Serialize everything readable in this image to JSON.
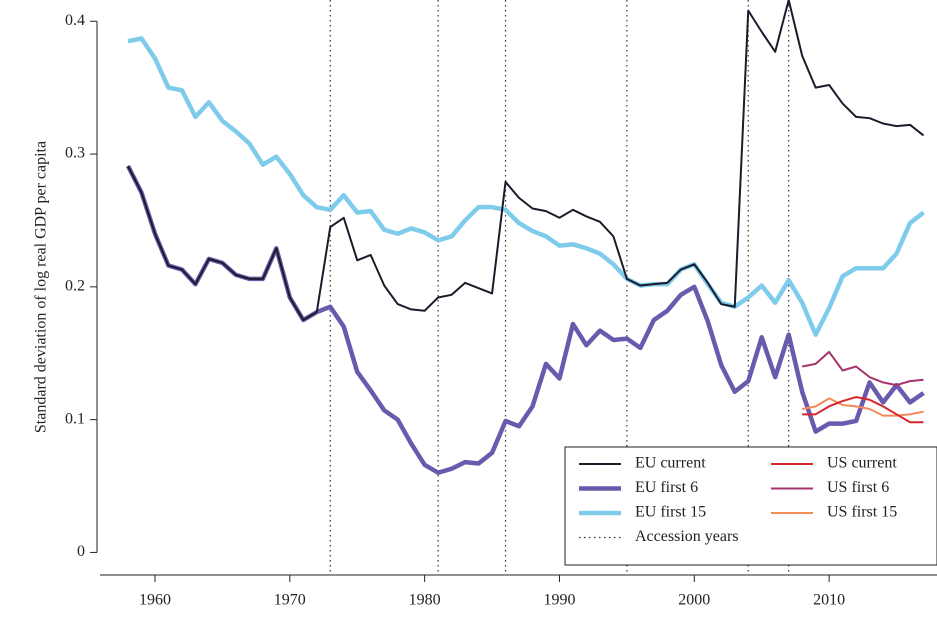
{
  "chart_data": {
    "type": "line",
    "ylabel": "Standard deviation of log real GDP per capita",
    "x": [
      1958,
      1959,
      1960,
      1961,
      1962,
      1963,
      1964,
      1965,
      1966,
      1967,
      1968,
      1969,
      1970,
      1971,
      1972,
      1973,
      1974,
      1975,
      1976,
      1977,
      1978,
      1979,
      1980,
      1981,
      1982,
      1983,
      1984,
      1985,
      1986,
      1987,
      1988,
      1989,
      1990,
      1991,
      1992,
      1993,
      1994,
      1995,
      1996,
      1997,
      1998,
      1999,
      2000,
      2001,
      2002,
      2003,
      2004,
      2005,
      2006,
      2007,
      2008,
      2009,
      2010,
      2011,
      2012,
      2013,
      2014,
      2015,
      2016,
      2017
    ],
    "series": [
      {
        "name": "EU current",
        "color": "#1b1b2b",
        "linewidth": 2,
        "values": [
          0.291,
          0.271,
          0.24,
          0.216,
          0.213,
          0.202,
          0.221,
          0.218,
          0.209,
          0.206,
          0.206,
          0.229,
          0.192,
          0.175,
          0.181,
          0.245,
          0.252,
          0.22,
          0.224,
          0.201,
          0.187,
          0.183,
          0.182,
          0.192,
          0.194,
          0.203,
          0.199,
          0.195,
          0.279,
          0.267,
          0.259,
          0.257,
          0.252,
          0.258,
          0.253,
          0.249,
          0.238,
          0.206,
          0.201,
          0.202,
          0.203,
          0.213,
          0.217,
          0.203,
          0.187,
          0.185,
          0.408,
          0.392,
          0.377,
          0.416,
          0.374,
          0.35,
          0.352,
          0.338,
          0.328,
          0.327,
          0.323,
          0.321,
          0.322,
          0.314
        ]
      },
      {
        "name": "EU first 6",
        "color": "#6a5aad",
        "linewidth": 4.5,
        "values": [
          0.291,
          0.271,
          0.24,
          0.216,
          0.213,
          0.202,
          0.221,
          0.218,
          0.209,
          0.206,
          0.206,
          0.229,
          0.192,
          0.175,
          0.181,
          0.185,
          0.17,
          0.136,
          0.122,
          0.107,
          0.1,
          0.082,
          0.066,
          0.06,
          0.063,
          0.068,
          0.067,
          0.075,
          0.099,
          0.095,
          0.11,
          0.142,
          0.131,
          0.172,
          0.156,
          0.167,
          0.16,
          0.161,
          0.154,
          0.175,
          0.182,
          0.194,
          0.2,
          0.174,
          0.141,
          0.121,
          0.129,
          0.162,
          0.132,
          0.164,
          0.121,
          0.091,
          0.097,
          0.097,
          0.099,
          0.128,
          0.113,
          0.126,
          0.113,
          0.12
        ]
      },
      {
        "name": "EU first 15",
        "color": "#7ecbec",
        "linewidth": 4.5,
        "values": [
          0.385,
          0.387,
          0.372,
          0.35,
          0.348,
          0.328,
          0.339,
          0.325,
          0.317,
          0.308,
          0.292,
          0.298,
          0.285,
          0.269,
          0.26,
          0.258,
          0.269,
          0.256,
          0.257,
          0.243,
          0.24,
          0.244,
          0.241,
          0.235,
          0.238,
          0.25,
          0.26,
          0.26,
          0.258,
          0.248,
          0.242,
          0.238,
          0.231,
          0.232,
          0.229,
          0.225,
          0.217,
          0.206,
          0.201,
          0.202,
          0.202,
          0.213,
          0.217,
          0.202,
          0.188,
          0.185,
          0.192,
          0.201,
          0.188,
          0.205,
          0.188,
          0.164,
          0.184,
          0.208,
          0.214,
          0.214,
          0.214,
          0.225,
          0.248,
          0.256
        ]
      },
      {
        "name": "US current",
        "color": "#d7262a",
        "linewidth": 2,
        "values": [
          null,
          null,
          null,
          null,
          null,
          null,
          null,
          null,
          null,
          null,
          null,
          null,
          null,
          null,
          null,
          null,
          null,
          null,
          null,
          null,
          null,
          null,
          null,
          null,
          null,
          null,
          null,
          null,
          null,
          null,
          null,
          null,
          null,
          null,
          null,
          null,
          null,
          null,
          null,
          null,
          null,
          null,
          null,
          null,
          null,
          null,
          null,
          null,
          null,
          null,
          0.104,
          0.104,
          0.11,
          0.114,
          0.117,
          0.115,
          0.11,
          0.104,
          0.098,
          0.098
        ]
      },
      {
        "name": "US first 6",
        "color": "#a6336a",
        "linewidth": 2,
        "values": [
          null,
          null,
          null,
          null,
          null,
          null,
          null,
          null,
          null,
          null,
          null,
          null,
          null,
          null,
          null,
          null,
          null,
          null,
          null,
          null,
          null,
          null,
          null,
          null,
          null,
          null,
          null,
          null,
          null,
          null,
          null,
          null,
          null,
          null,
          null,
          null,
          null,
          null,
          null,
          null,
          null,
          null,
          null,
          null,
          null,
          null,
          null,
          null,
          null,
          null,
          0.14,
          0.142,
          0.151,
          0.137,
          0.14,
          0.132,
          0.128,
          0.126,
          0.129,
          0.13
        ]
      },
      {
        "name": "US first 15",
        "color": "#f28a5a",
        "linewidth": 2,
        "values": [
          null,
          null,
          null,
          null,
          null,
          null,
          null,
          null,
          null,
          null,
          null,
          null,
          null,
          null,
          null,
          null,
          null,
          null,
          null,
          null,
          null,
          null,
          null,
          null,
          null,
          null,
          null,
          null,
          null,
          null,
          null,
          null,
          null,
          null,
          null,
          null,
          null,
          null,
          null,
          null,
          null,
          null,
          null,
          null,
          null,
          null,
          null,
          null,
          null,
          null,
          0.108,
          0.11,
          0.116,
          0.111,
          0.11,
          0.108,
          0.103,
          0.103,
          0.104,
          0.106
        ]
      }
    ],
    "accession_years": {
      "name": "Accession years",
      "values": [
        1973,
        1981,
        1986,
        1995,
        2004,
        2007
      ]
    },
    "xlim": [
      1955.7,
      2018
    ],
    "ylim": [
      -0.017,
      0.416
    ],
    "xticks": [
      1960,
      1970,
      1980,
      1990,
      2000,
      2010
    ],
    "yticks": [
      0,
      0.1,
      0.2,
      0.3,
      0.4
    ],
    "legend": "lower right"
  }
}
